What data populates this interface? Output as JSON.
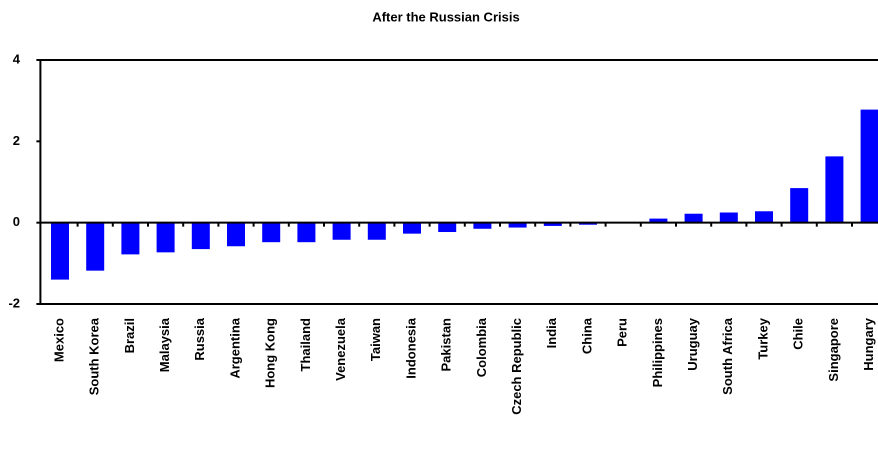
{
  "chart_data": {
    "type": "bar",
    "title": "After the Russian Crisis",
    "categories": [
      "Mexico",
      "South Korea",
      "Brazil",
      "Malaysia",
      "Russia",
      "Argentina",
      "Hong Kong",
      "Thailand",
      "Venezuela",
      "Taiwan",
      "Indonesia",
      "Pakistan",
      "Colombia",
      "Czech Republic",
      "India",
      "China",
      "Peru",
      "Philippines",
      "Uruguay",
      "South Africa",
      "Turkey",
      "Chile",
      "Singapore",
      "Hungary"
    ],
    "values": [
      -1.4,
      -1.18,
      -0.78,
      -0.73,
      -0.65,
      -0.58,
      -0.48,
      -0.48,
      -0.42,
      -0.42,
      -0.27,
      -0.23,
      -0.15,
      -0.12,
      -0.08,
      -0.05,
      0,
      0.1,
      0.22,
      0.25,
      0.28,
      0.85,
      1.63,
      2.78
    ],
    "color": "#0000ff",
    "ylim": [
      -2,
      4
    ],
    "yticks": [
      -2,
      0,
      2,
      4
    ],
    "grid": false
  }
}
